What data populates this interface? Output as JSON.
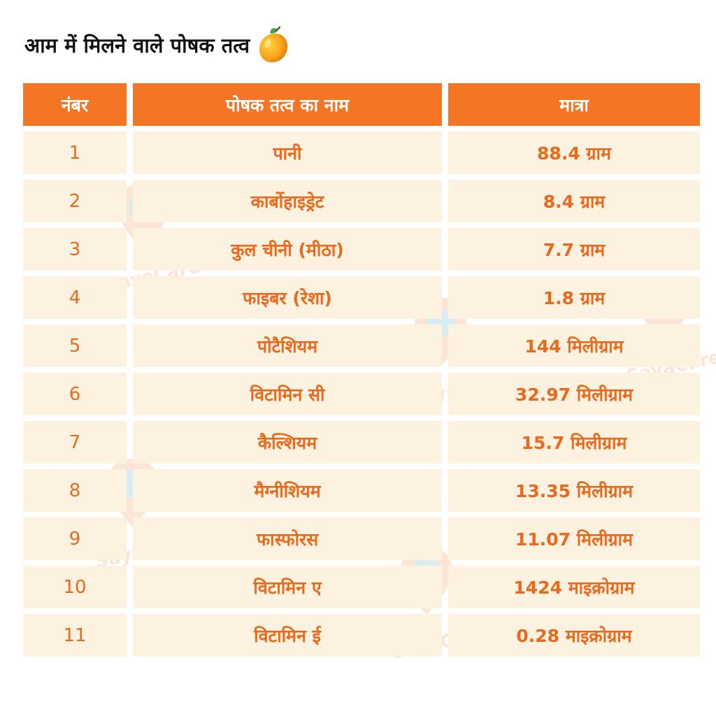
{
  "title": "आम में मिलने वाले पोषक तत्व",
  "title_icon": "mango-icon",
  "colors": {
    "header_bg": "#f47524",
    "row_bg": "#fdf1df",
    "row_text": "#e96a1d"
  },
  "table": {
    "headers": [
      "नंबर",
      "पोषक तत्व का नाम",
      "मात्रा"
    ],
    "rows": [
      {
        "num": "1",
        "name": "पानी",
        "amount": "88.4 ग्राम"
      },
      {
        "num": "2",
        "name": "कार्बोहाइड्रेट",
        "amount": "8.4 ग्राम"
      },
      {
        "num": "3",
        "name": "कुल चीनी (मीठा)",
        "amount": "7.7 ग्राम"
      },
      {
        "num": "4",
        "name": "फाइबर (रेशा)",
        "amount": "1.8 ग्राम"
      },
      {
        "num": "5",
        "name": "पोटैशियम",
        "amount": "144 मिलीग्राम"
      },
      {
        "num": "6",
        "name": "विटामिन सी",
        "amount": "32.97 मिलीग्राम"
      },
      {
        "num": "7",
        "name": "कैल्शियम",
        "amount": "15.7 मिलीग्राम"
      },
      {
        "num": "8",
        "name": "मैग्नीशियम",
        "amount": "13.35 मिलीग्राम"
      },
      {
        "num": "9",
        "name": "फास्फोरस",
        "amount": "11.07 मिलीग्राम"
      },
      {
        "num": "10",
        "name": "विटामिन ए",
        "amount": "1424 माइक्रोग्राम"
      },
      {
        "num": "11",
        "name": "विटामिन ई",
        "amount": "0.28 माइक्रोग्राम"
      }
    ]
  },
  "watermark": {
    "text": "SayaCare",
    "icon": "sayacare-logo-icon"
  }
}
